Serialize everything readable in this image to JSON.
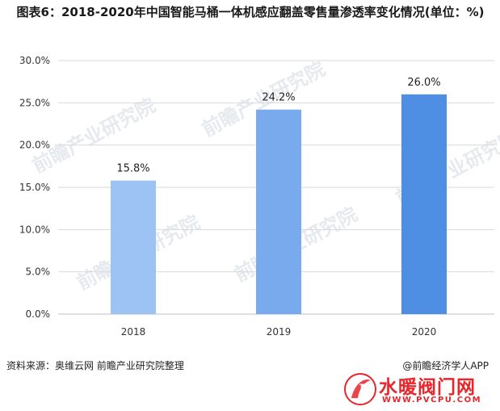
{
  "title": "图表6：2018-2020年中国智能马桶一体机感应翻盖零售量渗透率变化情况(单位：%)",
  "source": "资料来源：奥维云网 前瞻产业研究院整理",
  "credit": "@前瞻经济学人APP",
  "watermark": "前瞻产业研究院",
  "logo": {
    "name": "水暖阀门网",
    "url": "WWW.PVCPU.COM",
    "mark": "P"
  },
  "colors": {
    "bar_2018": "#9dc3f5",
    "bar_2019": "#79aaee",
    "bar_2020": "#4e8fe3",
    "grid": "#d9d9d9",
    "logo_red": "#e8252a"
  },
  "chart_data": {
    "type": "bar",
    "title": "图表6：2018-2020年中国智能马桶一体机感应翻盖零售量渗透率变化情况(单位：%)",
    "categories": [
      "2018",
      "2019",
      "2020"
    ],
    "values": [
      15.8,
      24.2,
      26.0
    ],
    "value_labels": [
      "15.8%",
      "24.2%",
      "26.0%"
    ],
    "ylim": [
      0,
      30
    ],
    "yticks": [
      0,
      5,
      10,
      15,
      20,
      25,
      30
    ],
    "ytick_labels": [
      "0.0%",
      "5.0%",
      "10.0%",
      "15.0%",
      "20.0%",
      "25.0%",
      "30.0%"
    ],
    "grid": true,
    "legend": "none",
    "xlabel": "",
    "ylabel": ""
  }
}
